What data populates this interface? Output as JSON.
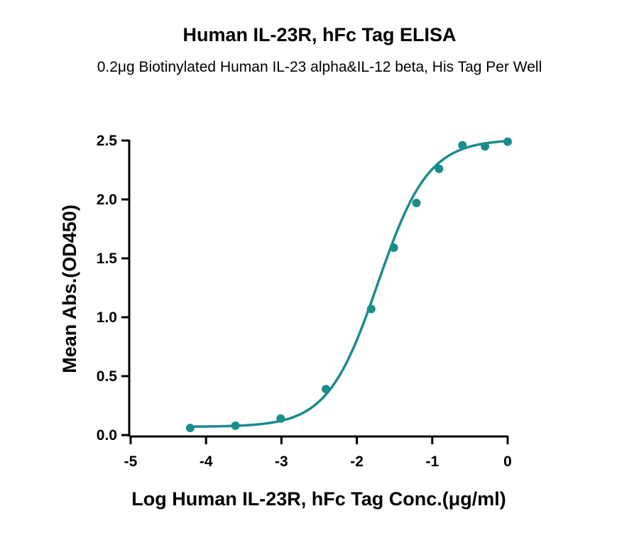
{
  "chart_data": {
    "type": "scatter",
    "title": "Human IL-23R, hFc Tag ELISA",
    "subtitle": "0.2μg Biotinylated Human IL-23 alpha&IL-12 beta, His Tag Per Well",
    "xlabel": "Log Human IL-23R, hFc Tag Conc.(μg/ml)",
    "ylabel": "Mean Abs.(OD450)",
    "xlim": [
      -5,
      0
    ],
    "ylim": [
      0,
      2.5
    ],
    "xticks": [
      -5,
      -4,
      -3,
      -2,
      -1,
      0
    ],
    "yticks": [
      0.0,
      0.5,
      1.0,
      1.5,
      2.0,
      2.5
    ],
    "xtick_labels": [
      "-5",
      "-4",
      "-3",
      "-2",
      "-1",
      "0"
    ],
    "ytick_labels": [
      "0.0",
      "0.5",
      "1.0",
      "1.5",
      "2.0",
      "2.5"
    ],
    "grid": false,
    "color": "#1a8c8c",
    "series": [
      {
        "x": [
          -4.21,
          -3.61,
          -3.01,
          -2.41,
          -1.81,
          -1.51,
          -1.21,
          -0.91,
          -0.6,
          -0.3,
          0.0
        ],
        "y": [
          0.06,
          0.08,
          0.14,
          0.39,
          1.07,
          1.59,
          1.97,
          2.26,
          2.46,
          2.45,
          2.49
        ],
        "fit": {
          "model": "4PL",
          "bottom": 0.07,
          "top": 2.51,
          "log_ec50": -1.72,
          "hill_slope": 1.3,
          "x_range": [
            -4.21,
            0.0
          ]
        }
      }
    ]
  }
}
